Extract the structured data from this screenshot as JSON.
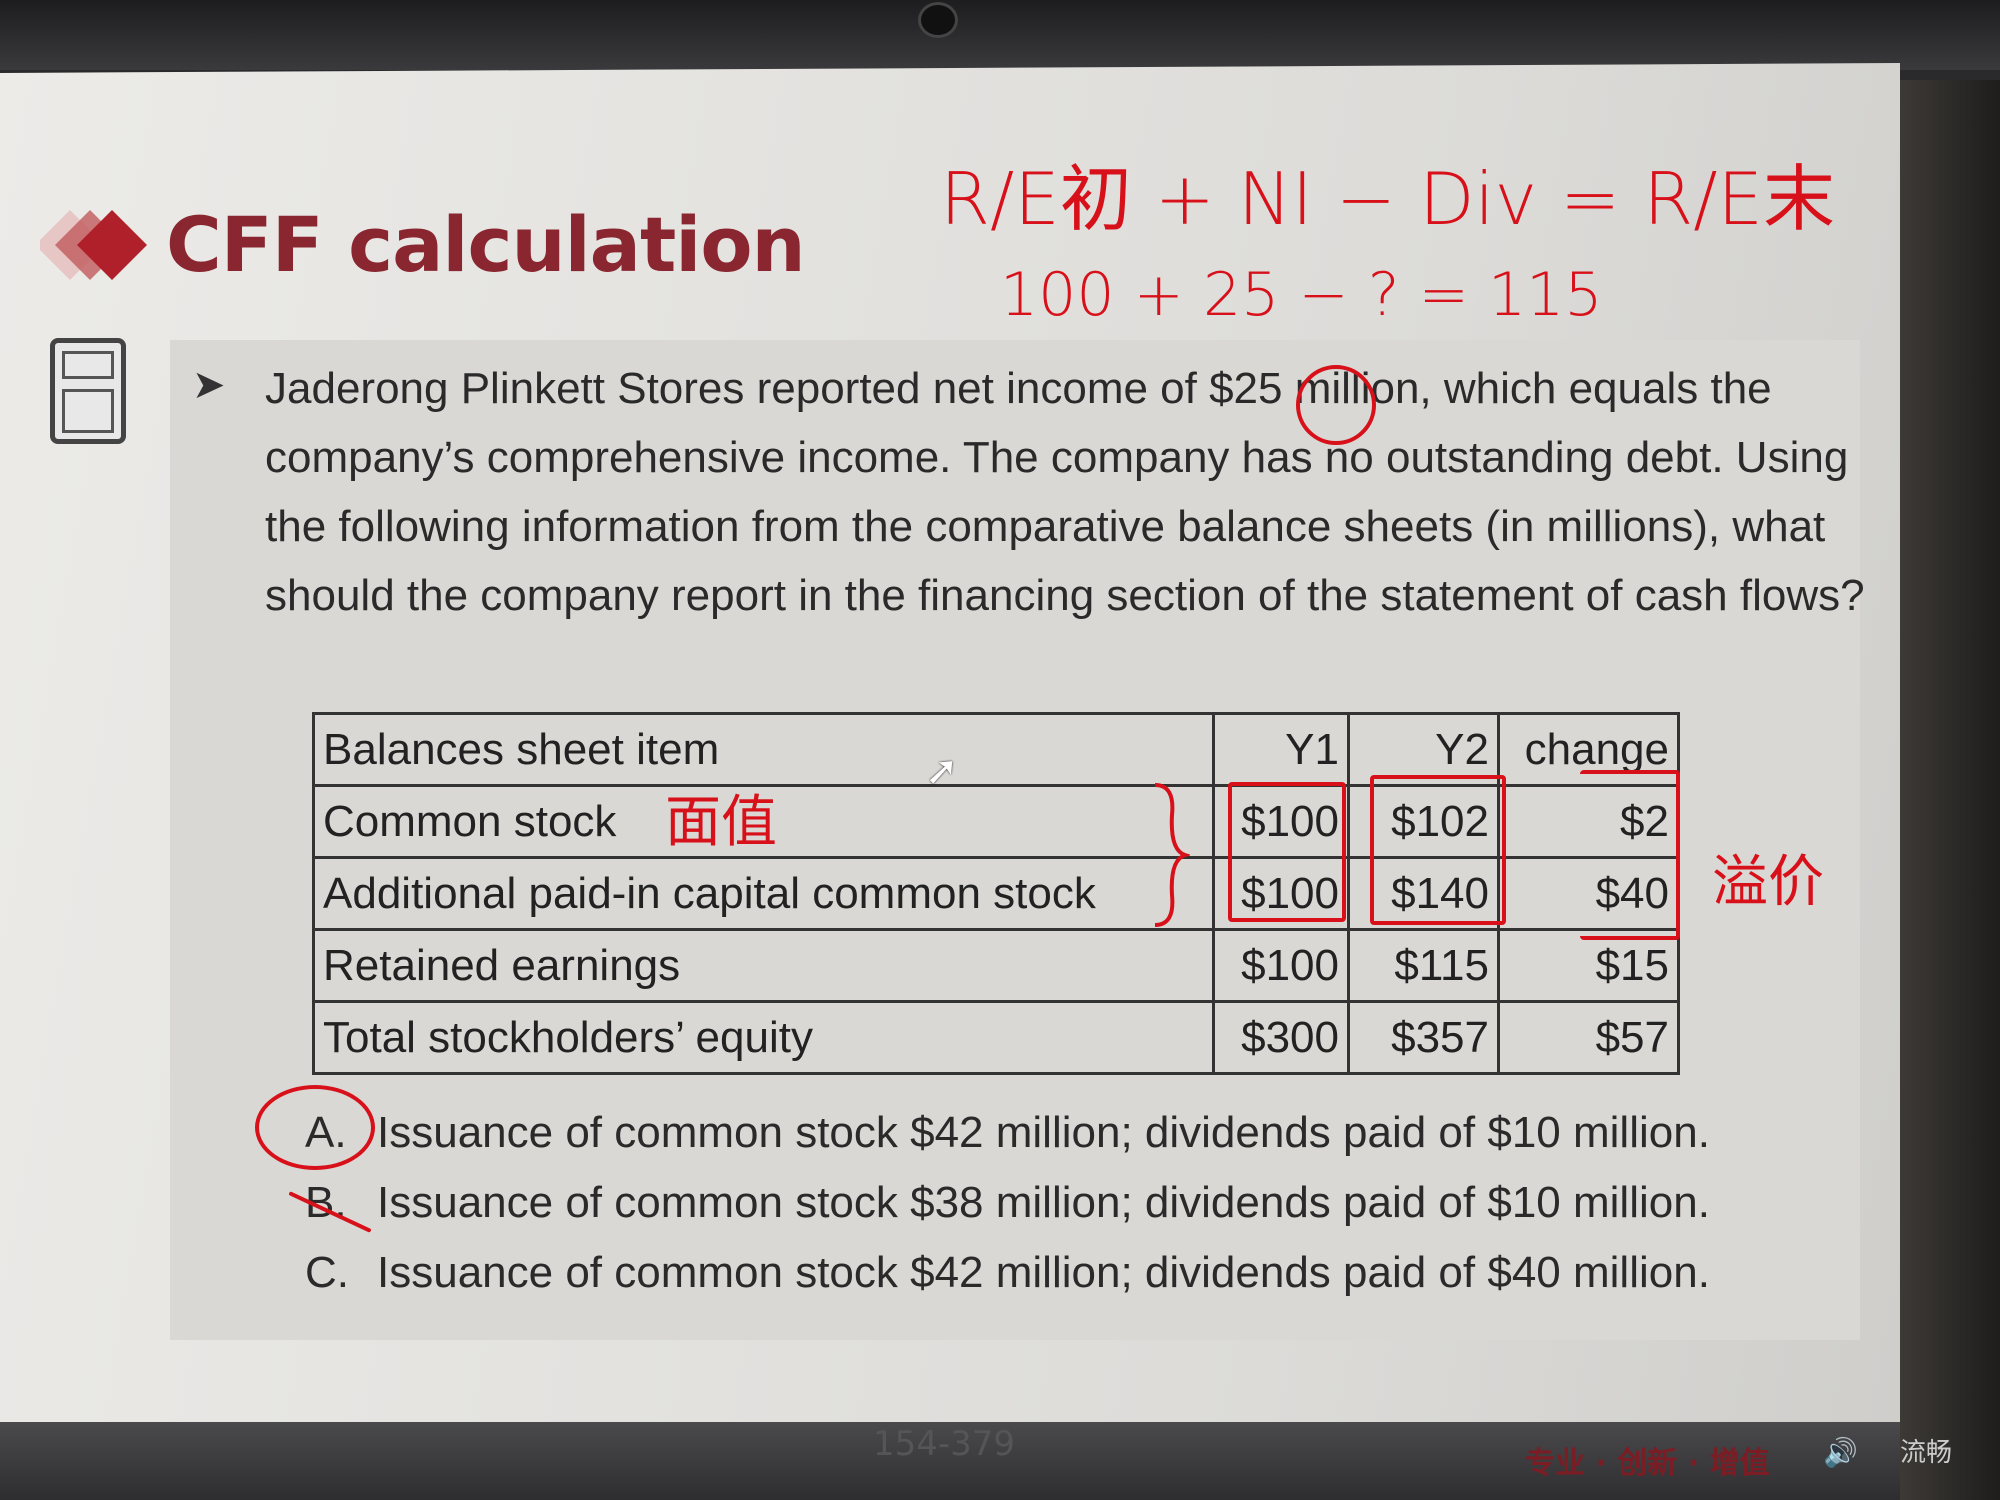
{
  "slide": {
    "title": "CFF calculation",
    "question": "Jaderong Plinkett Stores reported net income of $25 million, which equals the company’s comprehensive income. The company has no outstanding debt. Using the following information from the comparative balance sheets (in millions), what should the company report in the financing section of the statement of cash flows?",
    "table": {
      "headers": [
        "Balances sheet item",
        "Y1",
        "Y2",
        "change"
      ],
      "rows": [
        [
          "Common stock",
          "$100",
          "$102",
          "$2"
        ],
        [
          "Additional paid-in capital common stock",
          "$100",
          "$140",
          "$40"
        ],
        [
          "Retained earnings",
          "$100",
          "$115",
          "$15"
        ],
        [
          "Total stockholders’ equity",
          "$300",
          "$357",
          "$57"
        ]
      ]
    },
    "options": [
      {
        "letter": "A.",
        "text": "Issuance of common stock $42 million; dividends paid of $10 million."
      },
      {
        "letter": "B.",
        "text": "Issuance of common stock $38 million; dividends paid of $10 million."
      },
      {
        "letter": "C.",
        "text": "Issuance of common stock $42 million; dividends paid of $40 million."
      }
    ]
  },
  "annotations": {
    "formula": "R/E初 + NI − Div = R/E末",
    "calc": "100 + 25 − ? = 115",
    "par_value": "面值",
    "premium": "溢价",
    "color": "#d8101a"
  },
  "player": {
    "slide_range": "154-379",
    "brand": "专业 · 创新 · 增值",
    "quality": "流畅"
  },
  "colors": {
    "title": "#8a2630",
    "accent": "#c0343c"
  }
}
